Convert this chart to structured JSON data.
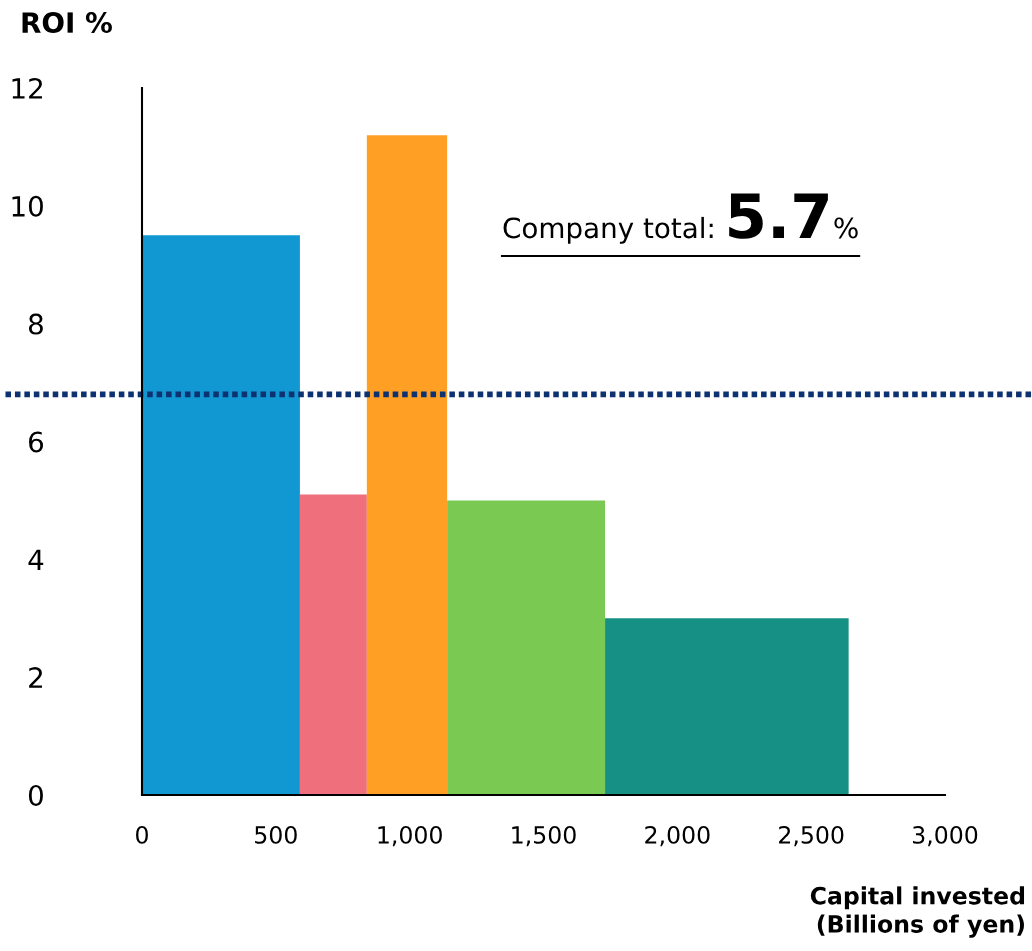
{
  "chart_data": {
    "type": "histogram",
    "bins": [
      0,
      590,
      840,
      1140,
      1730,
      2640
    ],
    "values": [
      9.5,
      5.1,
      11.2,
      5.0,
      3.0
    ],
    "colors": [
      "#1197d1",
      "#ef6f7c",
      "#ffa024",
      "#7ac952",
      "#169085"
    ],
    "xlabel": "Capital invested\n(Billions of yen)",
    "ylabel": "ROI %",
    "xlim": [
      0,
      3000
    ],
    "ylim": [
      0,
      12
    ],
    "xticks": [
      0,
      500,
      {
        "value": 1000,
        "label": "1,000"
      },
      {
        "value": 1500,
        "label": "1,500"
      },
      {
        "value": 2000,
        "label": "2,000"
      },
      {
        "value": 2500,
        "label": "2,500"
      },
      {
        "value": 3000,
        "label": "3,000"
      }
    ],
    "yticks": [
      0,
      2,
      4,
      6,
      8,
      10,
      12
    ],
    "ref_lines": [
      {
        "axis": "y",
        "value": 6.8,
        "color": "#0d3272",
        "line_style": "dotted"
      }
    ],
    "annotations": [
      "Company total: 5.7%"
    ],
    "grid": false
  }
}
